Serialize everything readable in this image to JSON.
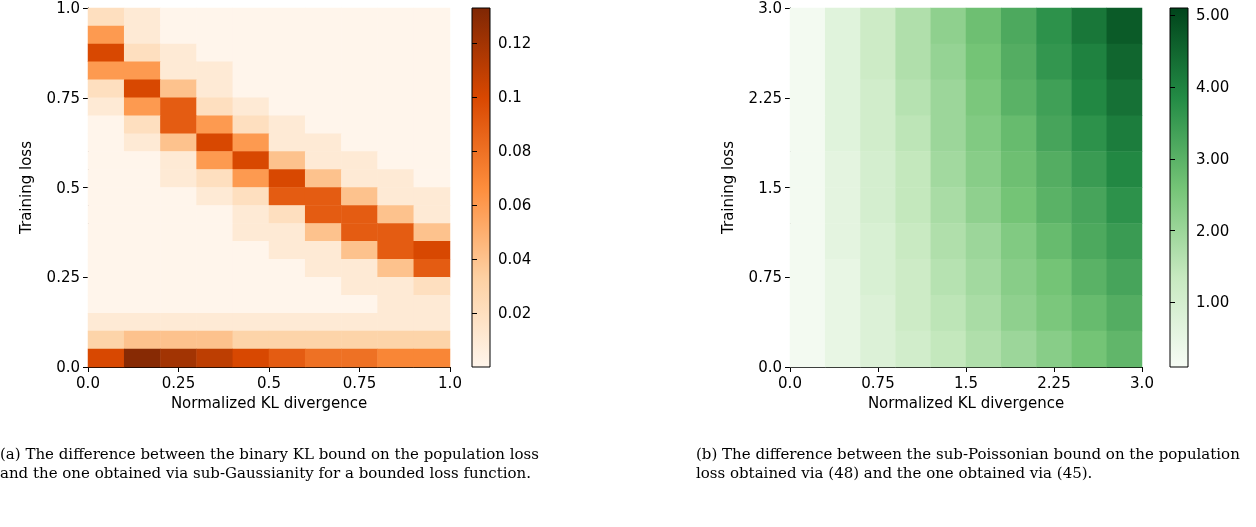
{
  "chart_data": [
    {
      "type": "heatmap",
      "xlabel": "Normalized KL divergence",
      "ylabel": "Training loss",
      "xlim": [
        0,
        1
      ],
      "xticks": [
        {
          "value": 0,
          "label": "0.0"
        },
        0.25,
        0.5,
        0.75,
        {
          "value": 1,
          "label": "1.0"
        }
      ],
      "ylim": [
        0,
        1
      ],
      "yticks": [
        {
          "value": 0,
          "label": "0.0"
        },
        0.25,
        0.5,
        0.75,
        {
          "value": 1,
          "label": "1.0"
        }
      ],
      "clim": [
        0,
        0.133
      ],
      "cticks": [
        0.02,
        0.04,
        0.06,
        0.08,
        0.1,
        0.12
      ],
      "colors": [
        "#fff5eb",
        "#fdd0a2",
        "#fd8d3c",
        "#d94801",
        "#7f2704"
      ],
      "cells": [
        [
          0.02,
          0.01,
          0,
          0,
          0,
          0,
          0,
          0,
          0,
          0
        ],
        [
          0.06,
          0.01,
          0,
          0,
          0,
          0,
          0,
          0,
          0,
          0
        ],
        [
          0.1,
          0.02,
          0.01,
          0,
          0,
          0,
          0,
          0,
          0,
          0
        ],
        [
          0.06,
          0.06,
          0.01,
          0.01,
          0,
          0,
          0,
          0,
          0,
          0
        ],
        [
          0.02,
          0.1,
          0.04,
          0.01,
          0,
          0,
          0,
          0,
          0,
          0
        ],
        [
          0.01,
          0.06,
          0.09,
          0.02,
          0.01,
          0,
          0,
          0,
          0,
          0
        ],
        [
          0,
          0.02,
          0.09,
          0.06,
          0.02,
          0.01,
          0,
          0,
          0,
          0
        ],
        [
          0,
          0.01,
          0.04,
          0.1,
          0.06,
          0.01,
          0.01,
          0,
          0,
          0
        ],
        [
          0,
          0,
          0.01,
          0.06,
          0.1,
          0.04,
          0.01,
          0.01,
          0,
          0
        ],
        [
          0,
          0,
          0.01,
          0.02,
          0.06,
          0.1,
          0.04,
          0.01,
          0.01,
          0
        ],
        [
          0,
          0,
          0,
          0.01,
          0.02,
          0.09,
          0.09,
          0.04,
          0.01,
          0.01
        ],
        [
          0,
          0,
          0,
          0,
          0.01,
          0.02,
          0.09,
          0.09,
          0.04,
          0.01
        ],
        [
          0,
          0,
          0,
          0,
          0.01,
          0.01,
          0.04,
          0.09,
          0.09,
          0.04
        ],
        [
          0,
          0,
          0,
          0,
          0,
          0.01,
          0.01,
          0.04,
          0.09,
          0.1
        ],
        [
          0,
          0,
          0,
          0,
          0,
          0,
          0.01,
          0.01,
          0.04,
          0.09
        ],
        [
          0,
          0,
          0,
          0,
          0,
          0,
          0,
          0.01,
          0.01,
          0.02
        ],
        [
          0,
          0,
          0,
          0,
          0,
          0,
          0,
          0,
          0.01,
          0.01
        ],
        [
          0.01,
          0.01,
          0.01,
          0.01,
          0.01,
          0.01,
          0.01,
          0.01,
          0.01,
          0.01
        ],
        [
          0.03,
          0.04,
          0.04,
          0.04,
          0.03,
          0.03,
          0.03,
          0.03,
          0.03,
          0.03
        ],
        [
          0.1,
          0.13,
          0.12,
          0.11,
          0.1,
          0.09,
          0.08,
          0.08,
          0.07,
          0.07
        ]
      ],
      "annotations": [
        "(a) The difference between the binary KL bound on the population loss and the one obtained via sub-Gaussianity for a bounded loss function."
      ]
    },
    {
      "type": "heatmap",
      "xlabel": "Normalized KL divergence",
      "ylabel": "Training loss",
      "xlim": [
        0,
        3
      ],
      "xticks": [
        {
          "value": 0,
          "label": "0.0"
        },
        0.75,
        1.5,
        2.25,
        {
          "value": 3,
          "label": "3.0"
        }
      ],
      "ylim": [
        0,
        3
      ],
      "yticks": [
        {
          "value": 0,
          "label": "0.0"
        },
        0.75,
        1.5,
        2.25,
        {
          "value": 3,
          "label": "3.0"
        }
      ],
      "clim": [
        0.1,
        5.1
      ],
      "cticks": [
        {
          "value": 1,
          "label": "1.00"
        },
        {
          "value": 2,
          "label": "2.00"
        },
        {
          "value": 3,
          "label": "3.00"
        },
        {
          "value": 4,
          "label": "4.00"
        },
        {
          "value": 5,
          "label": "5.00"
        }
      ],
      "colors": [
        "#f7fcf5",
        "#c7e9c0",
        "#74c476",
        "#238b45",
        "#00441b"
      ],
      "cells": [
        [
          0.2,
          0.7,
          1.2,
          1.7,
          2.2,
          2.7,
          3.2,
          3.7,
          4.2,
          4.7
        ],
        [
          0.2,
          0.7,
          1.2,
          1.7,
          2.1,
          2.6,
          3.1,
          3.6,
          4.0,
          4.5
        ],
        [
          0.2,
          0.7,
          1.1,
          1.6,
          2.0,
          2.5,
          3.0,
          3.4,
          3.9,
          4.3
        ],
        [
          0.2,
          0.7,
          1.1,
          1.5,
          2.0,
          2.4,
          2.8,
          3.3,
          3.7,
          4.1
        ],
        [
          0.2,
          0.6,
          1.0,
          1.4,
          1.9,
          2.3,
          2.7,
          3.1,
          3.5,
          3.9
        ],
        [
          0.2,
          0.6,
          1.0,
          1.4,
          1.8,
          2.2,
          2.6,
          3.0,
          3.3,
          3.7
        ],
        [
          0.2,
          0.6,
          0.9,
          1.3,
          1.7,
          2.0,
          2.4,
          2.8,
          3.2,
          3.5
        ],
        [
          0.2,
          0.5,
          0.9,
          1.2,
          1.6,
          1.9,
          2.3,
          2.6,
          3.0,
          3.3
        ],
        [
          0.2,
          0.5,
          0.8,
          1.2,
          1.5,
          1.8,
          2.2,
          2.5,
          2.8,
          3.1
        ],
        [
          0.2,
          0.5,
          0.8,
          1.1,
          1.4,
          1.7,
          2.0,
          2.3,
          2.6,
          2.9
        ]
      ],
      "annotations": [
        "(b) The difference between the sub-Poissonian bound on the population loss obtained via (48) and the one obtained via (45)."
      ]
    }
  ]
}
